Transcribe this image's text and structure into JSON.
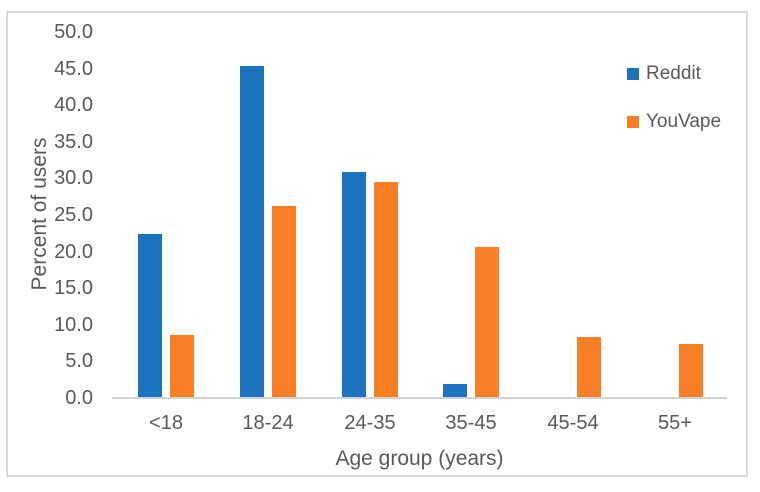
{
  "chart_data": {
    "type": "bar",
    "title": "",
    "categories": [
      "<18",
      "18-24",
      "24-35",
      "35-45",
      "45-54",
      "55+"
    ],
    "series": [
      {
        "name": "Reddit",
        "color": "#1e73be",
        "values": [
          22.2,
          45.2,
          30.8,
          1.8,
          0.0,
          0.0
        ]
      },
      {
        "name": "YouVape",
        "color": "#f97e26",
        "values": [
          8.5,
          26.1,
          29.4,
          20.5,
          8.2,
          7.3
        ]
      }
    ],
    "xlabel": "Age group (years)",
    "ylabel": "Percent of users",
    "ylim": [
      0,
      50
    ],
    "ytick_step": 5,
    "ytick_labels": [
      "0.0",
      "5.0",
      "10.0",
      "15.0",
      "20.0",
      "25.0",
      "30.0",
      "35.0",
      "40.0",
      "45.0",
      "50.0"
    ],
    "grid": false,
    "legend_position": "right-top"
  },
  "colors": {
    "background": "#ffffff",
    "frame_border": "#d9d9d9",
    "axis_line": "#d2d2d2",
    "text": "#595959"
  }
}
